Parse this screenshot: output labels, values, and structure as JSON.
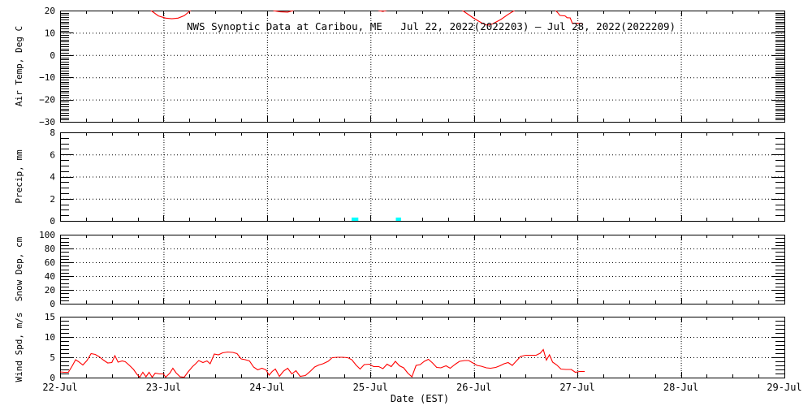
{
  "chart_data": {
    "type": "line",
    "title": "NWS Synoptic Data at Caribou, ME   Jul 22, 2022(2022203) — Jul 28, 2022(2022209)",
    "x_axis": {
      "label": "Date (EST)",
      "tick_labels": [
        "22-Jul",
        "23-Jul",
        "24-Jul",
        "25-Jul",
        "26-Jul",
        "27-Jul",
        "28-Jul",
        "29-Jul"
      ],
      "tick_values": [
        0,
        1,
        2,
        3,
        4,
        5,
        6,
        7
      ],
      "range_days": [
        0,
        7
      ],
      "minor_step_days": 0.25,
      "grid": "dotted vertical at each day"
    },
    "colors": {
      "line": "#ff0000",
      "bar": "#00ffff",
      "axis": "#000000",
      "background": "#ffffff"
    },
    "panels": [
      {
        "name": "air-temp",
        "ylabel": "Air Temp, Deg C",
        "ylim": [
          -30,
          20
        ],
        "tick_values": [
          20,
          10,
          0,
          -10,
          -20,
          -30
        ],
        "tick_labels": [
          "20",
          "10",
          "0",
          "−10",
          "−20",
          "−30"
        ],
        "y_minor_step": 1,
        "series_type": "line",
        "note": "temperature mostly above 20 C (clipped at panel top); visible dips only",
        "points": [
          [
            0.0,
            20.1
          ],
          [
            0.05,
            21.0
          ],
          [
            0.1,
            22.0
          ],
          [
            0.7,
            23.0
          ],
          [
            0.83,
            21.0
          ],
          [
            0.88,
            20.0
          ],
          [
            0.95,
            17.6
          ],
          [
            1.02,
            16.6
          ],
          [
            1.08,
            16.3
          ],
          [
            1.14,
            16.6
          ],
          [
            1.2,
            17.7
          ],
          [
            1.26,
            20.0
          ],
          [
            1.32,
            21.5
          ],
          [
            1.9,
            23.0
          ],
          [
            2.02,
            20.8
          ],
          [
            2.07,
            19.9
          ],
          [
            2.13,
            19.4
          ],
          [
            2.2,
            19.3
          ],
          [
            2.26,
            20.1
          ],
          [
            2.33,
            21.5
          ],
          [
            3.0,
            21.5
          ],
          [
            3.08,
            20.0
          ],
          [
            3.12,
            19.6
          ],
          [
            3.17,
            20.3
          ],
          [
            3.25,
            22.0
          ],
          [
            3.8,
            22.0
          ],
          [
            3.89,
            20.0
          ],
          [
            4.0,
            16.5
          ],
          [
            4.08,
            14.3
          ],
          [
            4.13,
            13.4
          ],
          [
            4.18,
            14.0
          ],
          [
            4.26,
            16.0
          ],
          [
            4.33,
            18.3
          ],
          [
            4.39,
            20.0
          ],
          [
            4.45,
            22.0
          ],
          [
            4.75,
            22.0
          ],
          [
            4.79,
            20.0
          ],
          [
            4.81,
            19.0
          ],
          [
            4.83,
            17.8
          ],
          [
            4.88,
            17.6
          ],
          [
            4.9,
            16.8
          ],
          [
            4.93,
            16.7
          ],
          [
            4.95,
            14.3
          ],
          [
            5.05,
            14.2
          ]
        ]
      },
      {
        "name": "precip",
        "ylabel": "Precip, mm",
        "ylim": [
          0,
          8
        ],
        "tick_values": [
          8,
          6,
          4,
          2,
          0
        ],
        "tick_labels": [
          "8",
          "6",
          "4",
          "2",
          "0"
        ],
        "y_minor_step": 0.5,
        "series_type": "bar",
        "bars": [
          {
            "day": 2.85,
            "width_days": 0.065,
            "value": 0.3
          },
          {
            "day": 3.27,
            "width_days": 0.05,
            "value": 0.3
          }
        ]
      },
      {
        "name": "snow-depth",
        "ylabel": "Snow Dep, cm",
        "ylim": [
          0,
          100
        ],
        "tick_values": [
          100,
          80,
          60,
          40,
          20,
          0
        ],
        "tick_labels": [
          "100",
          "80",
          "60",
          "40",
          "20",
          "0"
        ],
        "y_minor_step": 5,
        "series_type": "line",
        "note": "no data plotted",
        "points": []
      },
      {
        "name": "wind-speed",
        "ylabel": "Wind Spd, m/s",
        "ylim": [
          0,
          15
        ],
        "tick_values": [
          15,
          10,
          5,
          0
        ],
        "tick_labels": [
          "15",
          "10",
          "5",
          "0"
        ],
        "y_minor_step": 1,
        "series_type": "line",
        "points": [
          [
            0.0,
            1.4
          ],
          [
            0.04,
            1.3
          ],
          [
            0.08,
            1.3
          ],
          [
            0.12,
            3.0
          ],
          [
            0.15,
            4.4
          ],
          [
            0.18,
            3.9
          ],
          [
            0.22,
            3.1
          ],
          [
            0.26,
            4.2
          ],
          [
            0.3,
            5.9
          ],
          [
            0.34,
            5.7
          ],
          [
            0.38,
            5.1
          ],
          [
            0.42,
            4.3
          ],
          [
            0.46,
            3.6
          ],
          [
            0.5,
            3.7
          ],
          [
            0.53,
            5.4
          ],
          [
            0.56,
            3.8
          ],
          [
            0.6,
            4.1
          ],
          [
            0.63,
            3.9
          ],
          [
            0.67,
            3.0
          ],
          [
            0.71,
            2.0
          ],
          [
            0.74,
            0.9
          ],
          [
            0.77,
            0.1
          ],
          [
            0.8,
            1.3
          ],
          [
            0.83,
            0.2
          ],
          [
            0.86,
            1.3
          ],
          [
            0.89,
            0.1
          ],
          [
            0.92,
            1.1
          ],
          [
            0.96,
            0.9
          ],
          [
            1.0,
            0.9
          ],
          [
            1.02,
            0.1
          ],
          [
            1.06,
            1.1
          ],
          [
            1.09,
            2.3
          ],
          [
            1.12,
            1.2
          ],
          [
            1.16,
            0.2
          ],
          [
            1.2,
            0.1
          ],
          [
            1.24,
            1.5
          ],
          [
            1.28,
            2.7
          ],
          [
            1.31,
            3.4
          ],
          [
            1.34,
            4.2
          ],
          [
            1.38,
            3.7
          ],
          [
            1.42,
            4.1
          ],
          [
            1.45,
            3.4
          ],
          [
            1.49,
            5.8
          ],
          [
            1.53,
            5.6
          ],
          [
            1.57,
            6.1
          ],
          [
            1.62,
            6.3
          ],
          [
            1.67,
            6.2
          ],
          [
            1.71,
            5.9
          ],
          [
            1.75,
            4.6
          ],
          [
            1.79,
            4.4
          ],
          [
            1.83,
            4.1
          ],
          [
            1.87,
            2.6
          ],
          [
            1.91,
            1.9
          ],
          [
            1.95,
            2.3
          ],
          [
            1.99,
            1.9
          ],
          [
            2.02,
            0.6
          ],
          [
            2.05,
            1.5
          ],
          [
            2.08,
            2.1
          ],
          [
            2.12,
            0.3
          ],
          [
            2.16,
            1.6
          ],
          [
            2.2,
            2.3
          ],
          [
            2.24,
            0.9
          ],
          [
            2.28,
            1.7
          ],
          [
            2.32,
            0.3
          ],
          [
            2.37,
            0.5
          ],
          [
            2.42,
            1.6
          ],
          [
            2.46,
            2.6
          ],
          [
            2.5,
            3.1
          ],
          [
            2.54,
            3.4
          ],
          [
            2.59,
            4.0
          ],
          [
            2.63,
            4.9
          ],
          [
            2.68,
            5.0
          ],
          [
            2.73,
            5.0
          ],
          [
            2.78,
            4.9
          ],
          [
            2.82,
            4.4
          ],
          [
            2.86,
            3.1
          ],
          [
            2.9,
            2.1
          ],
          [
            2.94,
            3.2
          ],
          [
            2.99,
            3.3
          ],
          [
            3.03,
            2.7
          ],
          [
            3.08,
            2.7
          ],
          [
            3.12,
            2.2
          ],
          [
            3.16,
            3.3
          ],
          [
            3.2,
            2.7
          ],
          [
            3.24,
            4.0
          ],
          [
            3.28,
            2.9
          ],
          [
            3.32,
            2.4
          ],
          [
            3.36,
            1.1
          ],
          [
            3.4,
            0.2
          ],
          [
            3.44,
            3.0
          ],
          [
            3.48,
            3.2
          ],
          [
            3.52,
            4.0
          ],
          [
            3.56,
            4.5
          ],
          [
            3.6,
            3.6
          ],
          [
            3.64,
            2.5
          ],
          [
            3.68,
            2.4
          ],
          [
            3.73,
            2.9
          ],
          [
            3.77,
            2.3
          ],
          [
            3.82,
            3.3
          ],
          [
            3.86,
            4.0
          ],
          [
            3.91,
            4.2
          ],
          [
            3.95,
            4.2
          ],
          [
            3.99,
            3.6
          ],
          [
            4.03,
            3.0
          ],
          [
            4.07,
            2.8
          ],
          [
            4.12,
            2.4
          ],
          [
            4.16,
            2.3
          ],
          [
            4.21,
            2.5
          ],
          [
            4.25,
            2.9
          ],
          [
            4.29,
            3.4
          ],
          [
            4.33,
            3.7
          ],
          [
            4.37,
            3.0
          ],
          [
            4.41,
            4.1
          ],
          [
            4.45,
            5.2
          ],
          [
            4.5,
            5.5
          ],
          [
            4.55,
            5.5
          ],
          [
            4.6,
            5.5
          ],
          [
            4.64,
            6.0
          ],
          [
            4.67,
            6.9
          ],
          [
            4.7,
            4.3
          ],
          [
            4.73,
            5.6
          ],
          [
            4.76,
            3.8
          ],
          [
            4.8,
            3.1
          ],
          [
            4.84,
            2.1
          ],
          [
            4.89,
            2.0
          ],
          [
            4.94,
            2.0
          ],
          [
            4.98,
            1.3
          ],
          [
            5.02,
            1.5
          ],
          [
            5.07,
            1.5
          ]
        ]
      }
    ]
  }
}
